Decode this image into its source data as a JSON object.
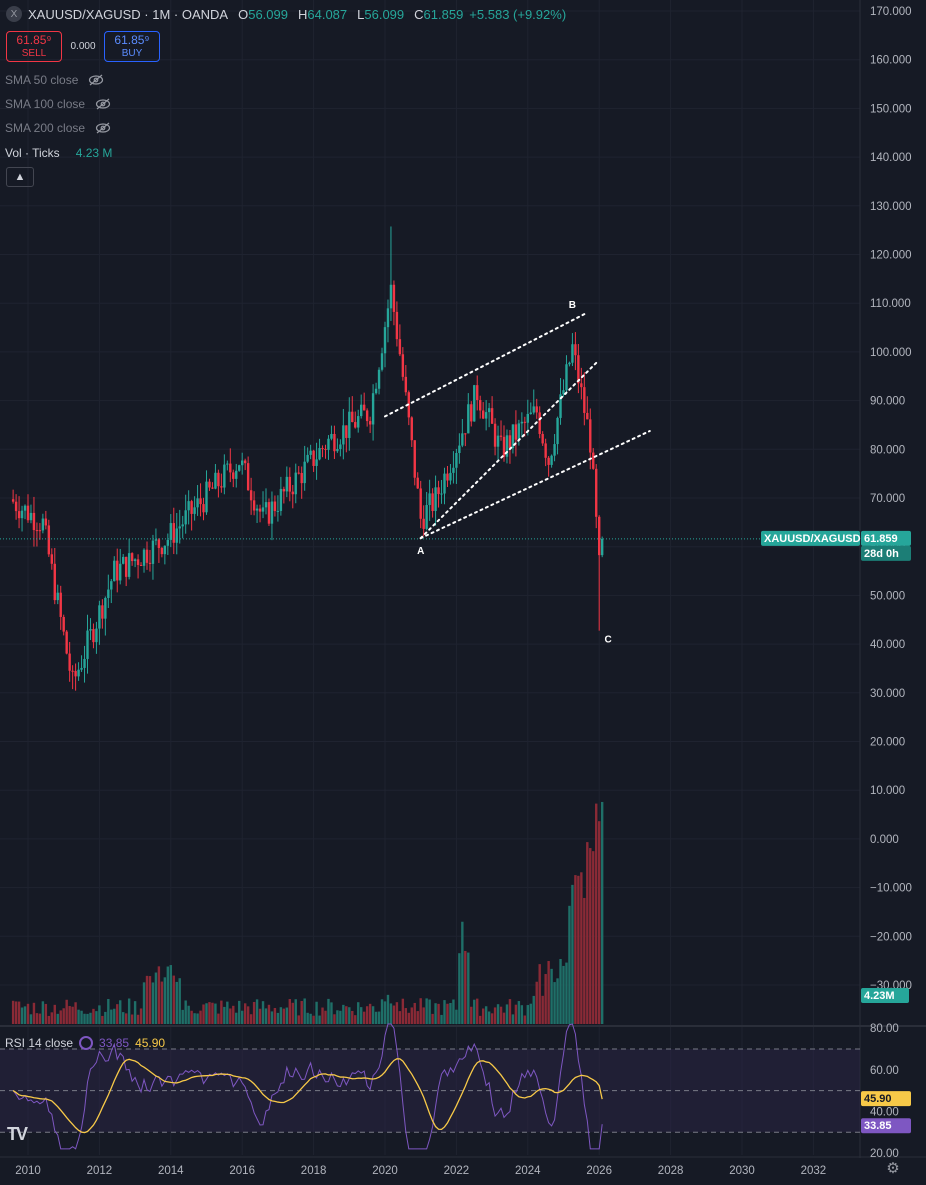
{
  "header": {
    "symbol_icon": "X",
    "title": "XAUUSD/XAGUSD · 1M · OANDA",
    "ohlc": [
      {
        "k": "O",
        "v": "56.099"
      },
      {
        "k": "H",
        "v": "64.087"
      },
      {
        "k": "L",
        "v": "56.099"
      },
      {
        "k": "C",
        "v": "61.859"
      }
    ],
    "change": "+5.583 (+9.92%)"
  },
  "trade": {
    "sell_price": "61.85⁹",
    "sell_label": "SELL",
    "spread": "0.000",
    "buy_price": "61.85⁹",
    "buy_label": "BUY"
  },
  "indicators": [
    {
      "label": "SMA 50 close",
      "icon": "eye-off-icon"
    },
    {
      "label": "SMA 100 close",
      "icon": "eye-off-icon"
    },
    {
      "label": "SMA 200 close",
      "icon": "eye-off-icon"
    }
  ],
  "volume_legend": {
    "label": "Vol · Ticks",
    "value": "4.23 M"
  },
  "collapse_icon": "chevron-up-icon",
  "rsi_legend": {
    "label": "RSI 14 close",
    "rsi": "33.85",
    "ma": "45.90"
  },
  "price_axis": [
    "170.000",
    "160.000",
    "150.000",
    "140.000",
    "130.000",
    "120.000",
    "110.000",
    "100.000",
    "90.000",
    "80.000",
    "70.000",
    "60.000",
    "50.000",
    "40.000",
    "30.000",
    "20.000",
    "10.000",
    "0.000",
    "−10.000",
    "−20.000",
    "−30.000"
  ],
  "rsi_axis": [
    "80.00",
    "60.00",
    "40.00",
    "20.00"
  ],
  "time_axis": [
    "2010",
    "2012",
    "2014",
    "2016",
    "2018",
    "2020",
    "2022",
    "2024",
    "2026",
    "2028",
    "2030",
    "2032"
  ],
  "tags": {
    "symbol": "XAUUSD/XAGUSD",
    "price": "61.859",
    "countdown": "28d 0h",
    "volume": "4.23M",
    "rsi_ma": "45.90",
    "rsi": "33.85"
  },
  "labels": {
    "a": "A",
    "b": "B",
    "c": "C"
  },
  "logo": "TV",
  "colors": {
    "up": "#26a69a",
    "down": "#f23645",
    "bg": "#161a25",
    "rsi": "#7e57c2",
    "rsi_ma": "#f7c948"
  },
  "chart_data": {
    "type": "candlestick",
    "interval": "1M",
    "ylim": [
      20,
      170
    ],
    "x_range": [
      "2009",
      "2033"
    ],
    "current_price": 61.859,
    "series": [
      {
        "name": "XAUUSD/XAGUSD",
        "keypoints": [
          {
            "date": "2009-07",
            "close": 70
          },
          {
            "date": "2010-06",
            "close": 65
          },
          {
            "date": "2011-04",
            "close": 32
          },
          {
            "date": "2012-06",
            "close": 55
          },
          {
            "date": "2013-12",
            "close": 62
          },
          {
            "date": "2015-12",
            "close": 78
          },
          {
            "date": "2016-08",
            "close": 66
          },
          {
            "date": "2018-06",
            "close": 82
          },
          {
            "date": "2019-08",
            "close": 88
          },
          {
            "date": "2020-03",
            "close": 113
          },
          {
            "date": "2020-06",
            "close": 100
          },
          {
            "date": "2021-01",
            "close": 66
          },
          {
            "date": "2021-06",
            "close": 70
          },
          {
            "date": "2022-08",
            "close": 92
          },
          {
            "date": "2023-04",
            "close": 80
          },
          {
            "date": "2024-04",
            "close": 88
          },
          {
            "date": "2024-08",
            "close": 78
          },
          {
            "date": "2025-04",
            "close": 101
          },
          {
            "date": "2025-10",
            "close": 82
          },
          {
            "date": "2026-01",
            "close": 56
          },
          {
            "date": "2026-02",
            "close": 61.859
          }
        ],
        "extremes": {
          "high_2020": 126,
          "low_2011": 31,
          "low_2026": 43
        }
      },
      {
        "name": "Vol · Ticks",
        "last": "4.23M",
        "spike_max_date": "2026-01"
      },
      {
        "name": "RSI 14 close",
        "last": 33.85,
        "ma_last": 45.9,
        "bands": [
          30,
          50,
          70
        ]
      }
    ],
    "annotations": [
      {
        "text": "A",
        "date": "2021-01",
        "price": 62
      },
      {
        "text": "B",
        "date": "2025-04",
        "price": 108
      },
      {
        "text": "C",
        "date": "2026-02",
        "price": 43
      }
    ],
    "trendlines": [
      {
        "from": {
          "date": "2021-01",
          "price": 62
        },
        "to": {
          "date": "2025-12",
          "price": 98
        }
      },
      {
        "from": {
          "date": "2020-01",
          "price": 87
        },
        "to": {
          "date": "2025-08",
          "price": 108
        }
      },
      {
        "from": {
          "date": "2021-01",
          "price": 62
        },
        "to": {
          "date": "2027-06",
          "price": 84
        }
      }
    ]
  }
}
